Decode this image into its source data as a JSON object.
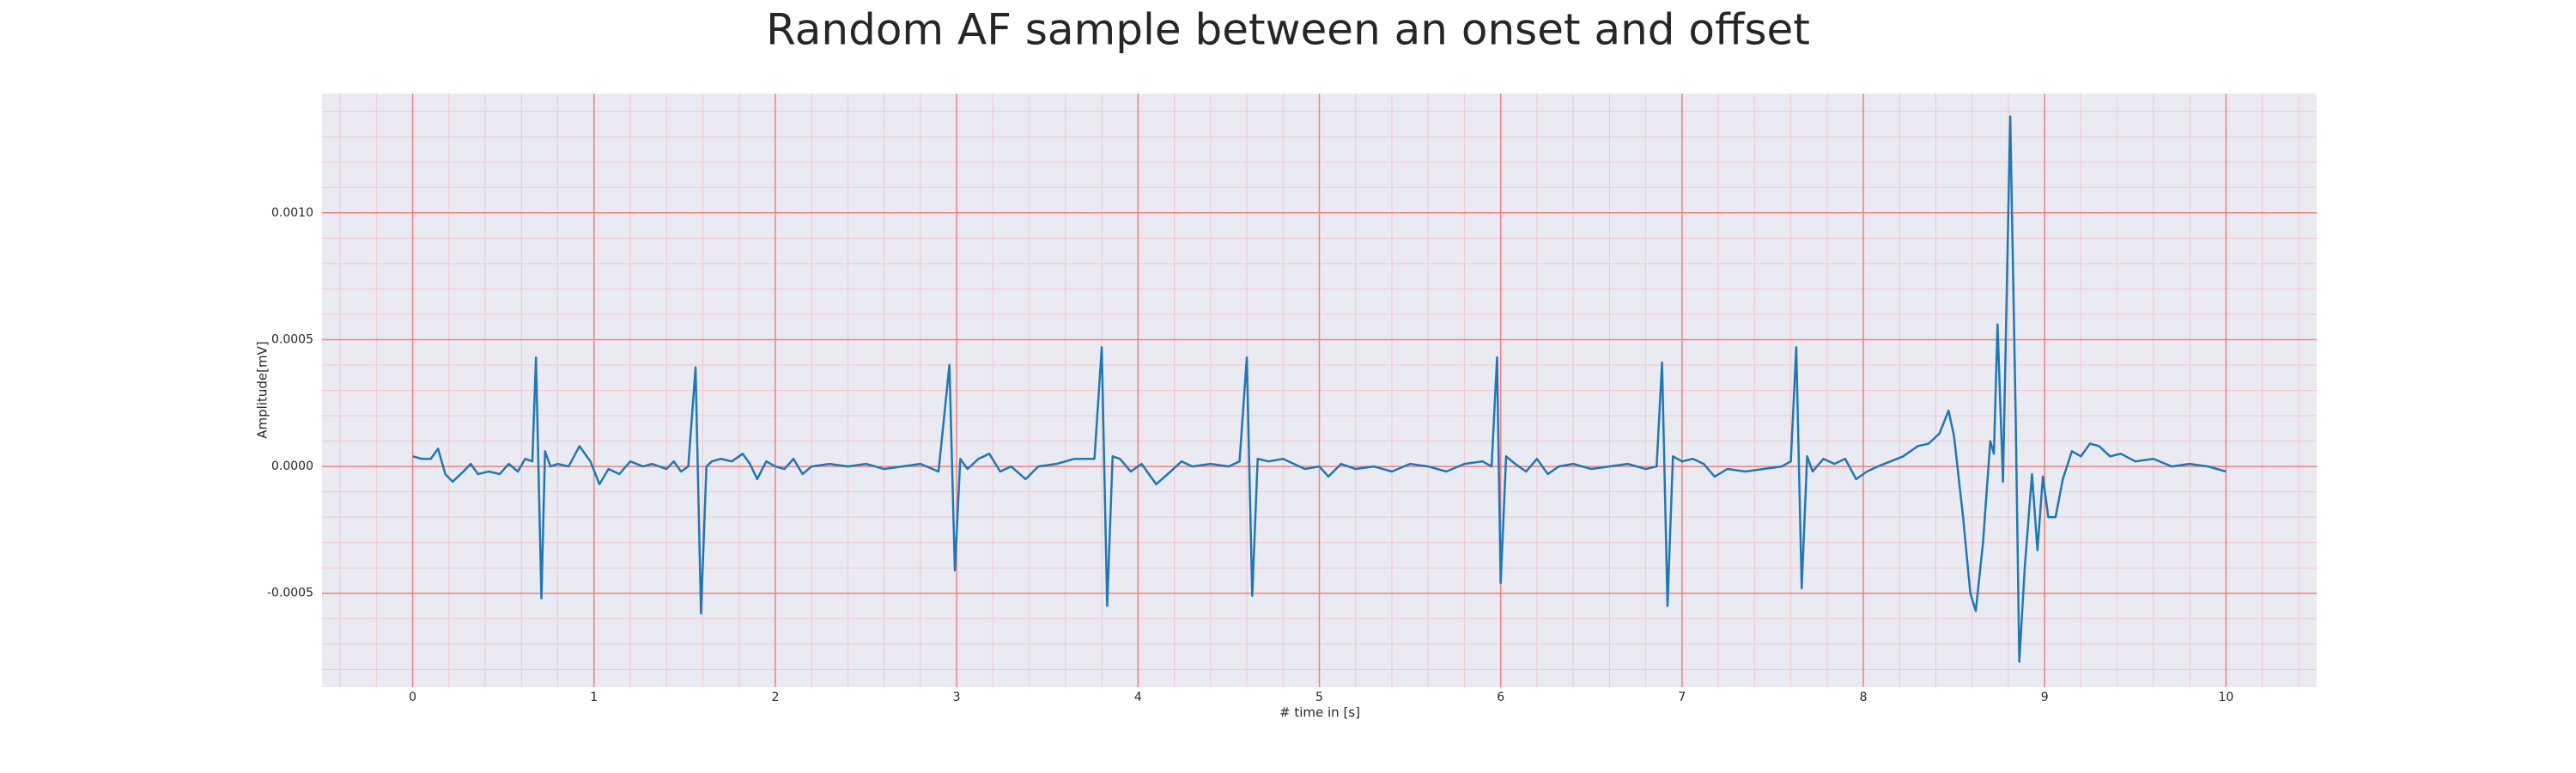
{
  "chart_data": {
    "type": "line",
    "title": "Random AF sample between an onset and offset",
    "xlabel": "# time in [s]",
    "ylabel": "Amplitude[mV]",
    "xlim": [
      -0.5,
      10.5
    ],
    "ylim": [
      -0.00087,
      0.00147
    ],
    "xticks": [
      0,
      1,
      2,
      3,
      4,
      5,
      6,
      7,
      8,
      9,
      10
    ],
    "yticks": [
      {
        "value": -0.0005,
        "label": "-0.0005"
      },
      {
        "value": 0,
        "label": "0.0000"
      },
      {
        "value": 0.0005,
        "label": "0.0005"
      },
      {
        "value": 0.001,
        "label": "0.0010"
      }
    ],
    "grid": true,
    "minor_grid": {
      "x_step": 0.2,
      "y_step": 0.0001
    },
    "background": "#eaeaf2",
    "grid_color": "#f08080",
    "minor_grid_color": "#f5c6cb",
    "series": [
      {
        "color": "#1f77b4",
        "x": [
          0.0,
          0.05,
          0.1,
          0.14,
          0.18,
          0.22,
          0.28,
          0.32,
          0.36,
          0.42,
          0.48,
          0.53,
          0.58,
          0.62,
          0.66,
          0.68,
          0.71,
          0.73,
          0.76,
          0.8,
          0.86,
          0.92,
          0.98,
          1.03,
          1.08,
          1.14,
          1.2,
          1.27,
          1.32,
          1.4,
          1.44,
          1.48,
          1.52,
          1.56,
          1.59,
          1.62,
          1.65,
          1.7,
          1.76,
          1.82,
          1.86,
          1.9,
          1.95,
          2.0,
          2.05,
          2.1,
          2.15,
          2.2,
          2.3,
          2.4,
          2.5,
          2.6,
          2.7,
          2.8,
          2.9,
          2.96,
          2.99,
          3.02,
          3.06,
          3.12,
          3.18,
          3.24,
          3.3,
          3.38,
          3.45,
          3.55,
          3.65,
          3.76,
          3.8,
          3.83,
          3.86,
          3.9,
          3.96,
          4.02,
          4.1,
          4.18,
          4.24,
          4.3,
          4.4,
          4.5,
          4.56,
          4.6,
          4.63,
          4.66,
          4.72,
          4.8,
          4.86,
          4.92,
          5.0,
          5.05,
          5.12,
          5.2,
          5.3,
          5.4,
          5.5,
          5.6,
          5.7,
          5.8,
          5.9,
          5.95,
          5.98,
          6.0,
          6.03,
          6.08,
          6.14,
          6.2,
          6.26,
          6.32,
          6.4,
          6.5,
          6.6,
          6.7,
          6.8,
          6.86,
          6.89,
          6.92,
          6.95,
          7.0,
          7.06,
          7.12,
          7.18,
          7.25,
          7.35,
          7.45,
          7.55,
          7.6,
          7.63,
          7.66,
          7.69,
          7.72,
          7.78,
          7.84,
          7.9,
          7.96,
          8.02,
          8.08,
          8.15,
          8.22,
          8.3,
          8.36,
          8.42,
          8.47,
          8.5,
          8.55,
          8.59,
          8.62,
          8.66,
          8.7,
          8.72,
          8.74,
          8.77,
          8.81,
          8.84,
          8.86,
          8.89,
          8.93,
          8.96,
          8.99,
          9.02,
          9.06,
          9.1,
          9.15,
          9.2,
          9.25,
          9.3,
          9.36,
          9.42,
          9.5,
          9.6,
          9.7,
          9.8,
          9.9,
          10.0
        ],
        "values": [
          4e-05,
          3e-05,
          3e-05,
          7e-05,
          -3e-05,
          -6e-05,
          -2e-05,
          1e-05,
          -3e-05,
          -2e-05,
          -3e-05,
          1e-05,
          -2e-05,
          3e-05,
          2e-05,
          0.00043,
          -0.00052,
          6e-05,
          0,
          1e-05,
          0,
          8e-05,
          2e-05,
          -7e-05,
          -1e-05,
          -3e-05,
          2e-05,
          0,
          1e-05,
          -1e-05,
          2e-05,
          -2e-05,
          0,
          0.00039,
          -0.00058,
          0,
          2e-05,
          3e-05,
          2e-05,
          5e-05,
          1e-05,
          -5e-05,
          2e-05,
          0,
          -1e-05,
          3e-05,
          -3e-05,
          0,
          1e-05,
          0,
          1e-05,
          -1e-05,
          0,
          1e-05,
          -2e-05,
          0.0004,
          -0.00041,
          3e-05,
          -1e-05,
          3e-05,
          5e-05,
          -2e-05,
          0,
          -5e-05,
          0,
          1e-05,
          3e-05,
          3e-05,
          0.00047,
          -0.00055,
          4e-05,
          3e-05,
          -2e-05,
          1e-05,
          -7e-05,
          -2e-05,
          2e-05,
          0,
          1e-05,
          0,
          2e-05,
          0.00043,
          -0.00051,
          3e-05,
          2e-05,
          3e-05,
          1e-05,
          -1e-05,
          0,
          -4e-05,
          1e-05,
          -1e-05,
          0,
          -2e-05,
          1e-05,
          0,
          -2e-05,
          1e-05,
          2e-05,
          0,
          0.00043,
          -0.00046,
          4e-05,
          1e-05,
          -2e-05,
          3e-05,
          -3e-05,
          0,
          1e-05,
          -1e-05,
          0,
          1e-05,
          -1e-05,
          0,
          0.00041,
          -0.00055,
          4e-05,
          2e-05,
          3e-05,
          1e-05,
          -4e-05,
          -1e-05,
          -2e-05,
          -1e-05,
          0,
          2e-05,
          0.00047,
          -0.00048,
          4e-05,
          -2e-05,
          3e-05,
          1e-05,
          3e-05,
          -5e-05,
          -2e-05,
          0,
          2e-05,
          4e-05,
          8e-05,
          9e-05,
          0.00013,
          0.00022,
          0.00012,
          -0.0002,
          -0.0005,
          -0.00057,
          -0.0003,
          0.0001,
          5e-05,
          0.00056,
          -6e-05,
          0.00138,
          0.0002,
          -0.00077,
          -0.0004,
          -3e-05,
          -0.00033,
          -4e-05,
          -0.0002,
          -0.0002,
          -5e-05,
          6e-05,
          4e-05,
          9e-05,
          8e-05,
          4e-05,
          5e-05,
          2e-05,
          3e-05,
          0,
          1e-05,
          0,
          -2e-05
        ]
      }
    ]
  }
}
